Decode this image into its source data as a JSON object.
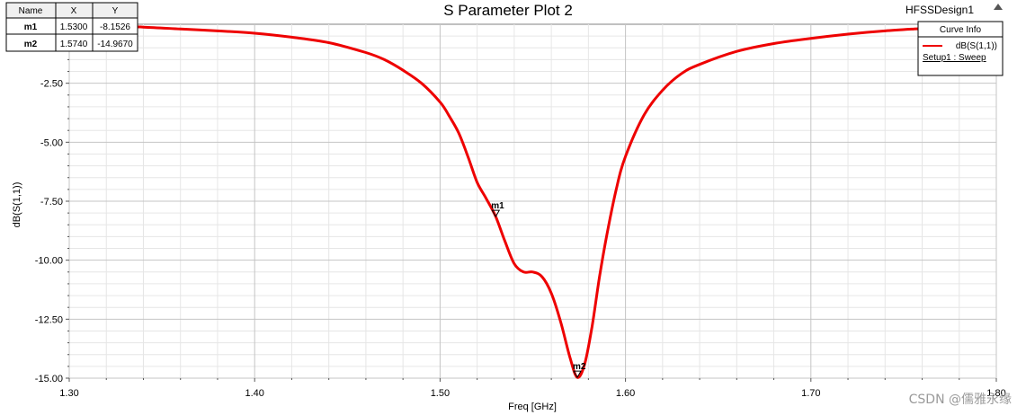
{
  "chart_data": {
    "type": "line",
    "title": "S Parameter Plot 2",
    "design_name": "HFSSDesign1",
    "xlabel": "Freq [GHz]",
    "ylabel": "dB(S(1,1))",
    "xlim": [
      1.3,
      1.8
    ],
    "ylim": [
      -15.0,
      0.0
    ],
    "x_ticks": [
      1.3,
      1.4,
      1.5,
      1.6,
      1.7,
      1.8
    ],
    "x_tick_labels": [
      "1.30",
      "1.40",
      "1.50",
      "1.60",
      "1.70",
      "1.80"
    ],
    "y_ticks": [
      -2.5,
      -5.0,
      -7.5,
      -10.0,
      -12.5,
      -15.0
    ],
    "y_tick_labels": [
      "-2.50",
      "-5.00",
      "-7.50",
      "-10.00",
      "-12.50",
      "-15.00"
    ],
    "grid": true,
    "legend_position": "top-right",
    "legend": {
      "title": "Curve Info",
      "entry": "dB(S(1,1))",
      "setup": "Setup1 : Sweep"
    },
    "series": [
      {
        "name": "dB(S(1,1))",
        "color": "#ee0000",
        "x": [
          1.3,
          1.32,
          1.34,
          1.36,
          1.38,
          1.4,
          1.42,
          1.44,
          1.46,
          1.47,
          1.48,
          1.49,
          1.5,
          1.505,
          1.51,
          1.515,
          1.52,
          1.525,
          1.53,
          1.535,
          1.54,
          1.545,
          1.55,
          1.555,
          1.56,
          1.565,
          1.57,
          1.574,
          1.578,
          1.582,
          1.586,
          1.59,
          1.595,
          1.6,
          1.61,
          1.62,
          1.63,
          1.64,
          1.66,
          1.68,
          1.7,
          1.72,
          1.74,
          1.76
        ],
        "values": [
          -0.05,
          -0.08,
          -0.12,
          -0.2,
          -0.28,
          -0.38,
          -0.55,
          -0.78,
          -1.2,
          -1.5,
          -1.95,
          -2.5,
          -3.3,
          -3.9,
          -4.6,
          -5.6,
          -6.7,
          -7.4,
          -8.15,
          -9.2,
          -10.15,
          -10.5,
          -10.5,
          -10.7,
          -11.4,
          -12.6,
          -14.1,
          -14.97,
          -14.4,
          -12.8,
          -10.7,
          -8.9,
          -7.0,
          -5.6,
          -3.85,
          -2.8,
          -2.1,
          -1.7,
          -1.15,
          -0.82,
          -0.6,
          -0.42,
          -0.28,
          -0.18
        ]
      }
    ],
    "markers": [
      {
        "name": "m1",
        "x": 1.53,
        "y": -8.1526
      },
      {
        "name": "m2",
        "x": 1.574,
        "y": -14.967
      }
    ],
    "marker_table": {
      "headers": [
        "Name",
        "X",
        "Y"
      ],
      "rows": [
        [
          "m1",
          "1.5300",
          "-8.1526"
        ],
        [
          "m2",
          "1.5740",
          "-14.9670"
        ]
      ]
    },
    "watermark": "CSDN @儒雅永缘"
  }
}
